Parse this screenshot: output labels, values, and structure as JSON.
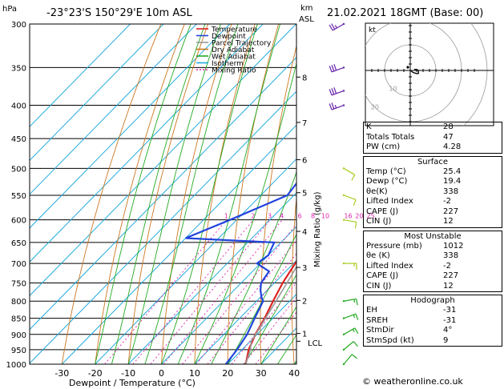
{
  "header": {
    "hpa_label": "hPa",
    "location": "-23°23'S  150°29'E  10m  ASL",
    "km_label": "km",
    "asl_label": "ASL",
    "datetime": "21.02.2021  18GMT  (Base: 00)"
  },
  "legend": [
    {
      "label": "Temperature",
      "color": "#dd2222"
    },
    {
      "label": "Dewpoint",
      "color": "#2244dd"
    },
    {
      "label": "Parcel Trajectory",
      "color": "#999999"
    },
    {
      "label": "Dry Adiabat",
      "color": "#cc7722"
    },
    {
      "label": "Wet Adiabat",
      "color": "#22aa22"
    },
    {
      "label": "Isotherm",
      "color": "#22aadd"
    },
    {
      "label": "Mixing Ratio",
      "color": "#dd22aa"
    }
  ],
  "chart_data": {
    "type": "line",
    "title": "",
    "xlabel": "Dewpoint / Temperature (°C)",
    "ylabel": "hPa",
    "right_axis_label": "Mixing Ratio (g/kg)",
    "x_ticks": [
      -30,
      -20,
      -10,
      0,
      10,
      20,
      30,
      40
    ],
    "pressure_levels": [
      300,
      350,
      400,
      450,
      500,
      550,
      600,
      650,
      700,
      750,
      800,
      850,
      900,
      950,
      1000
    ],
    "km_ticks": [
      {
        "label": "8",
        "p": 362
      },
      {
        "label": "7",
        "p": 425
      },
      {
        "label": "6",
        "p": 485
      },
      {
        "label": "5",
        "p": 545
      },
      {
        "label": "4",
        "p": 625
      },
      {
        "label": "3",
        "p": 710
      },
      {
        "label": "2",
        "p": 798
      },
      {
        "label": "1",
        "p": 897
      }
    ],
    "lcl_label": "LCL",
    "lcl_p": 922,
    "mixing_ratio_labels": [
      "1",
      "2",
      "3",
      "4",
      "6",
      "8",
      "10",
      "16",
      "20",
      "25"
    ],
    "mixing_ratio_values": [
      1,
      2,
      3,
      4,
      6,
      8,
      10,
      16,
      20,
      25
    ],
    "series": [
      {
        "name": "Temperature",
        "color": "#dd2222",
        "points": [
          {
            "p": 1000,
            "t": 25.4
          },
          {
            "p": 950,
            "t": 22.0
          },
          {
            "p": 900,
            "t": 19.5
          },
          {
            "p": 850,
            "t": 17.5
          },
          {
            "p": 800,
            "t": 15.0
          },
          {
            "p": 750,
            "t": 12.5
          },
          {
            "p": 700,
            "t": 10.5
          },
          {
            "p": 650,
            "t": 8.5
          },
          {
            "p": 630,
            "t": 8.5
          },
          {
            "p": 600,
            "t": 5.0
          },
          {
            "p": 550,
            "t": 0.0
          },
          {
            "p": 500,
            "t": -5.0
          },
          {
            "p": 450,
            "t": -11.0
          },
          {
            "p": 400,
            "t": -17.5
          },
          {
            "p": 350,
            "t": -25.5
          },
          {
            "p": 300,
            "t": -34.0
          }
        ]
      },
      {
        "name": "Dewpoint",
        "color": "#2244dd",
        "points": [
          {
            "p": 1000,
            "t": 19.4
          },
          {
            "p": 950,
            "t": 18.5
          },
          {
            "p": 900,
            "t": 17.0
          },
          {
            "p": 850,
            "t": 14.5
          },
          {
            "p": 800,
            "t": 12.0
          },
          {
            "p": 790,
            "t": 10.5
          },
          {
            "p": 770,
            "t": 8.0
          },
          {
            "p": 750,
            "t": 6.0
          },
          {
            "p": 720,
            "t": 5.0
          },
          {
            "p": 700,
            "t": -1.0
          },
          {
            "p": 680,
            "t": 0.0
          },
          {
            "p": 650,
            "t": -2.0
          },
          {
            "p": 640,
            "t": -30.0
          },
          {
            "p": 600,
            "t": -22.0
          },
          {
            "p": 550,
            "t": -12.0
          },
          {
            "p": 520,
            "t": -13.0
          },
          {
            "p": 500,
            "t": -16.0
          },
          {
            "p": 450,
            "t": -19.0
          },
          {
            "p": 400,
            "t": -22.0
          },
          {
            "p": 350,
            "t": -30.0
          },
          {
            "p": 300,
            "t": -40.0
          }
        ]
      },
      {
        "name": "Parcel Trajectory",
        "color": "#999999",
        "points": [
          {
            "p": 1000,
            "t": 25.4
          },
          {
            "p": 950,
            "t": 22.5
          },
          {
            "p": 922,
            "t": 20.3
          },
          {
            "p": 900,
            "t": 19.6
          },
          {
            "p": 850,
            "t": 17.8
          },
          {
            "p": 800,
            "t": 15.9
          },
          {
            "p": 750,
            "t": 13.8
          },
          {
            "p": 700,
            "t": 11.5
          },
          {
            "p": 650,
            "t": 9.0
          },
          {
            "p": 600,
            "t": 6.2
          },
          {
            "p": 550,
            "t": 2.8
          },
          {
            "p": 500,
            "t": -1.3
          },
          {
            "p": 450,
            "t": -6.2
          },
          {
            "p": 400,
            "t": -12.4
          },
          {
            "p": 350,
            "t": -20.2
          },
          {
            "p": 300,
            "t": -30.0
          }
        ]
      }
    ],
    "winds": [
      {
        "p": 1000,
        "dir": 40,
        "kt": 10
      },
      {
        "p": 950,
        "dir": 50,
        "kt": 10
      },
      {
        "p": 900,
        "dir": 60,
        "kt": 15
      },
      {
        "p": 850,
        "dir": 70,
        "kt": 15
      },
      {
        "p": 800,
        "dir": 80,
        "kt": 15
      },
      {
        "p": 700,
        "dir": 90,
        "kt": 15
      },
      {
        "p": 600,
        "dir": 100,
        "kt": 10
      },
      {
        "p": 550,
        "dir": 110,
        "kt": 10
      },
      {
        "p": 500,
        "dir": 120,
        "kt": 10
      },
      {
        "p": 400,
        "dir": 250,
        "kt": 25
      },
      {
        "p": 380,
        "dir": 250,
        "kt": 30
      },
      {
        "p": 350,
        "dir": 250,
        "kt": 30
      },
      {
        "p": 300,
        "dir": 240,
        "kt": 25
      }
    ]
  },
  "hodograph": {
    "unit_label": "kt",
    "ring_labels": [
      "10",
      "20",
      "30"
    ],
    "trace_uv": [
      [
        0,
        0
      ],
      [
        3,
        -2
      ],
      [
        6,
        -3
      ],
      [
        8,
        -3
      ],
      [
        8,
        0
      ],
      [
        6,
        1
      ],
      [
        4,
        1
      ]
    ]
  },
  "indices": {
    "top": [
      {
        "label": "K",
        "value": "28"
      },
      {
        "label": "Totals Totals",
        "value": "47"
      },
      {
        "label": "PW (cm)",
        "value": "4.28"
      }
    ],
    "surface": {
      "title": "Surface",
      "rows": [
        {
          "label": "Temp (°C)",
          "value": "25.4"
        },
        {
          "label": "Dewp (°C)",
          "value": "19.4"
        },
        {
          "label": "θe(K)",
          "value": "338"
        },
        {
          "label": "Lifted Index",
          "value": "-2"
        },
        {
          "label": "CAPE (J)",
          "value": "227"
        },
        {
          "label": "CIN (J)",
          "value": "12"
        }
      ]
    },
    "most_unstable": {
      "title": "Most Unstable",
      "rows": [
        {
          "label": "Pressure (mb)",
          "value": "1012"
        },
        {
          "label": "θe (K)",
          "value": "338"
        },
        {
          "label": "Lifted Index",
          "value": "-2"
        },
        {
          "label": "CAPE (J)",
          "value": "227"
        },
        {
          "label": "CIN (J)",
          "value": "12"
        }
      ]
    },
    "hodograph_box": {
      "title": "Hodograph",
      "rows": [
        {
          "label": "EH",
          "value": "-31"
        },
        {
          "label": "SREH",
          "value": "-31"
        },
        {
          "label": "StmDir",
          "value": "4°"
        },
        {
          "label": "StmSpd (kt)",
          "value": "9"
        }
      ]
    }
  },
  "credit": "© weatheronline.co.uk"
}
